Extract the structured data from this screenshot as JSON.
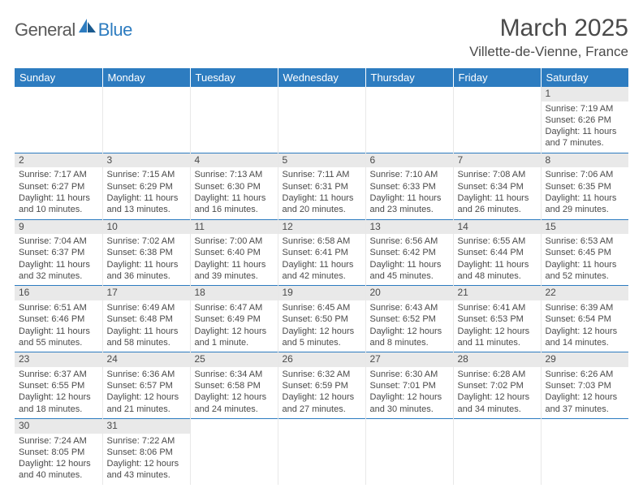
{
  "logo": {
    "part1": "General",
    "part2": "Blue"
  },
  "title": "March 2025",
  "location": "Villette-de-Vienne, France",
  "colors": {
    "header_bg": "#2d7cc0",
    "header_text": "#ffffff",
    "daynum_bg": "#e9e9e9",
    "border": "#2d7cc0",
    "text": "#4a4a4a"
  },
  "weekdays": [
    "Sunday",
    "Monday",
    "Tuesday",
    "Wednesday",
    "Thursday",
    "Friday",
    "Saturday"
  ],
  "weeks": [
    [
      null,
      null,
      null,
      null,
      null,
      null,
      {
        "n": "1",
        "sr": "7:19 AM",
        "ss": "6:26 PM",
        "dl": "11 hours and 7 minutes."
      }
    ],
    [
      {
        "n": "2",
        "sr": "7:17 AM",
        "ss": "6:27 PM",
        "dl": "11 hours and 10 minutes."
      },
      {
        "n": "3",
        "sr": "7:15 AM",
        "ss": "6:29 PM",
        "dl": "11 hours and 13 minutes."
      },
      {
        "n": "4",
        "sr": "7:13 AM",
        "ss": "6:30 PM",
        "dl": "11 hours and 16 minutes."
      },
      {
        "n": "5",
        "sr": "7:11 AM",
        "ss": "6:31 PM",
        "dl": "11 hours and 20 minutes."
      },
      {
        "n": "6",
        "sr": "7:10 AM",
        "ss": "6:33 PM",
        "dl": "11 hours and 23 minutes."
      },
      {
        "n": "7",
        "sr": "7:08 AM",
        "ss": "6:34 PM",
        "dl": "11 hours and 26 minutes."
      },
      {
        "n": "8",
        "sr": "7:06 AM",
        "ss": "6:35 PM",
        "dl": "11 hours and 29 minutes."
      }
    ],
    [
      {
        "n": "9",
        "sr": "7:04 AM",
        "ss": "6:37 PM",
        "dl": "11 hours and 32 minutes."
      },
      {
        "n": "10",
        "sr": "7:02 AM",
        "ss": "6:38 PM",
        "dl": "11 hours and 36 minutes."
      },
      {
        "n": "11",
        "sr": "7:00 AM",
        "ss": "6:40 PM",
        "dl": "11 hours and 39 minutes."
      },
      {
        "n": "12",
        "sr": "6:58 AM",
        "ss": "6:41 PM",
        "dl": "11 hours and 42 minutes."
      },
      {
        "n": "13",
        "sr": "6:56 AM",
        "ss": "6:42 PM",
        "dl": "11 hours and 45 minutes."
      },
      {
        "n": "14",
        "sr": "6:55 AM",
        "ss": "6:44 PM",
        "dl": "11 hours and 48 minutes."
      },
      {
        "n": "15",
        "sr": "6:53 AM",
        "ss": "6:45 PM",
        "dl": "11 hours and 52 minutes."
      }
    ],
    [
      {
        "n": "16",
        "sr": "6:51 AM",
        "ss": "6:46 PM",
        "dl": "11 hours and 55 minutes."
      },
      {
        "n": "17",
        "sr": "6:49 AM",
        "ss": "6:48 PM",
        "dl": "11 hours and 58 minutes."
      },
      {
        "n": "18",
        "sr": "6:47 AM",
        "ss": "6:49 PM",
        "dl": "12 hours and 1 minute."
      },
      {
        "n": "19",
        "sr": "6:45 AM",
        "ss": "6:50 PM",
        "dl": "12 hours and 5 minutes."
      },
      {
        "n": "20",
        "sr": "6:43 AM",
        "ss": "6:52 PM",
        "dl": "12 hours and 8 minutes."
      },
      {
        "n": "21",
        "sr": "6:41 AM",
        "ss": "6:53 PM",
        "dl": "12 hours and 11 minutes."
      },
      {
        "n": "22",
        "sr": "6:39 AM",
        "ss": "6:54 PM",
        "dl": "12 hours and 14 minutes."
      }
    ],
    [
      {
        "n": "23",
        "sr": "6:37 AM",
        "ss": "6:55 PM",
        "dl": "12 hours and 18 minutes."
      },
      {
        "n": "24",
        "sr": "6:36 AM",
        "ss": "6:57 PM",
        "dl": "12 hours and 21 minutes."
      },
      {
        "n": "25",
        "sr": "6:34 AM",
        "ss": "6:58 PM",
        "dl": "12 hours and 24 minutes."
      },
      {
        "n": "26",
        "sr": "6:32 AM",
        "ss": "6:59 PM",
        "dl": "12 hours and 27 minutes."
      },
      {
        "n": "27",
        "sr": "6:30 AM",
        "ss": "7:01 PM",
        "dl": "12 hours and 30 minutes."
      },
      {
        "n": "28",
        "sr": "6:28 AM",
        "ss": "7:02 PM",
        "dl": "12 hours and 34 minutes."
      },
      {
        "n": "29",
        "sr": "6:26 AM",
        "ss": "7:03 PM",
        "dl": "12 hours and 37 minutes."
      }
    ],
    [
      {
        "n": "30",
        "sr": "7:24 AM",
        "ss": "8:05 PM",
        "dl": "12 hours and 40 minutes."
      },
      {
        "n": "31",
        "sr": "7:22 AM",
        "ss": "8:06 PM",
        "dl": "12 hours and 43 minutes."
      },
      null,
      null,
      null,
      null,
      null
    ]
  ],
  "labels": {
    "sunrise": "Sunrise: ",
    "sunset": "Sunset: ",
    "daylight": "Daylight: "
  }
}
